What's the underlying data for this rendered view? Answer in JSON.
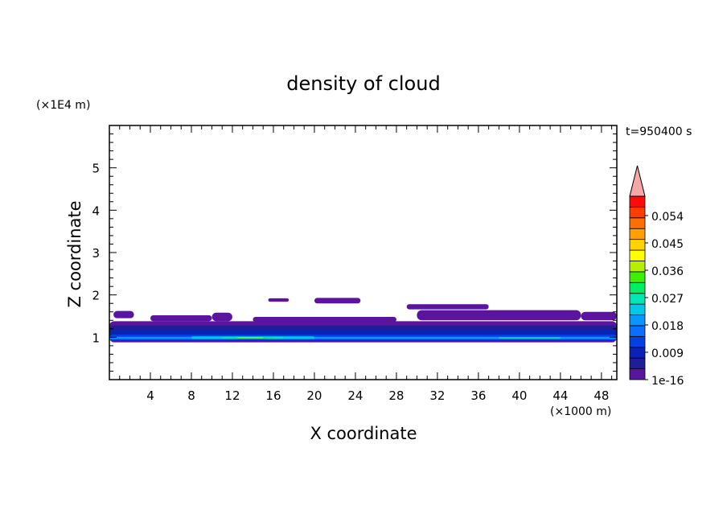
{
  "chart_data": {
    "type": "heatmap",
    "title": "density of cloud",
    "xlabel": "X coordinate",
    "ylabel": "Z coordinate",
    "x_unit": "(×1000 m)",
    "y_unit": "(×1E4 m)",
    "time_label": "t=950400 s",
    "xlim": [
      0,
      49.5
    ],
    "ylim": [
      0,
      6
    ],
    "x_ticks": [
      4,
      8,
      12,
      16,
      20,
      24,
      28,
      32,
      36,
      40,
      44,
      48
    ],
    "y_ticks": [
      1,
      2,
      3,
      4,
      5
    ],
    "grid": false,
    "colorbar": {
      "labels": [
        "1e-16",
        "0.009",
        "0.018",
        "0.027",
        "0.036",
        "0.045",
        "0.054"
      ],
      "colors": [
        "#5a14a0",
        "#1e1e96",
        "#0a23b4",
        "#0041e6",
        "#0a6eff",
        "#0a96ff",
        "#00c8e6",
        "#00e6b4",
        "#00ee64",
        "#3cf000",
        "#b4f000",
        "#ffff00",
        "#ffd200",
        "#ffa000",
        "#ff6e00",
        "#ff3c00",
        "#ff0a0a"
      ],
      "extend_color": "#f4a8a8",
      "extend": "max"
    },
    "regions": [
      {
        "level": 0,
        "x0": 0,
        "x1": 49.5,
        "z0": 0.88,
        "z1": 1.38
      },
      {
        "level": 0,
        "x0": 0.4,
        "x1": 2.4,
        "z0": 1.45,
        "z1": 1.62
      },
      {
        "level": 0,
        "x0": 4,
        "x1": 10,
        "z0": 1.38,
        "z1": 1.52
      },
      {
        "level": 0,
        "x0": 10,
        "x1": 12,
        "z0": 1.38,
        "z1": 1.58
      },
      {
        "level": 0,
        "x0": 14,
        "x1": 28,
        "z0": 1.36,
        "z1": 1.48
      },
      {
        "level": 0,
        "x0": 15.5,
        "x1": 17.5,
        "z0": 1.84,
        "z1": 1.92
      },
      {
        "level": 0,
        "x0": 20,
        "x1": 24.5,
        "z0": 1.8,
        "z1": 1.93
      },
      {
        "level": 0,
        "x0": 29,
        "x1": 37,
        "z0": 1.66,
        "z1": 1.78
      },
      {
        "level": 0,
        "x0": 30,
        "x1": 46,
        "z0": 1.4,
        "z1": 1.64
      },
      {
        "level": 0,
        "x0": 46,
        "x1": 49.5,
        "z0": 1.4,
        "z1": 1.6
      },
      {
        "level": 1,
        "x0": 0,
        "x1": 49.5,
        "z0": 0.92,
        "z1": 1.28
      },
      {
        "level": 2,
        "x0": 0,
        "x1": 49.5,
        "z0": 0.95,
        "z1": 1.18
      },
      {
        "level": 3,
        "x0": 0,
        "x1": 49.5,
        "z0": 0.93,
        "z1": 1.06
      },
      {
        "level": 5,
        "x0": 0,
        "x1": 49.5,
        "z0": 0.96,
        "z1": 1.01
      },
      {
        "level": 6,
        "x0": 8,
        "x1": 20,
        "z0": 0.96,
        "z1": 1.02
      },
      {
        "level": 7,
        "x0": 11,
        "x1": 17,
        "z0": 0.97,
        "z1": 1.01
      },
      {
        "level": 8,
        "x0": 12,
        "x1": 16,
        "z0": 0.975,
        "z1": 1.005
      },
      {
        "level": 10,
        "x0": 12.5,
        "x1": 15,
        "z0": 0.98,
        "z1": 1.0
      },
      {
        "level": 7,
        "x0": 38,
        "x1": 44,
        "z0": 0.97,
        "z1": 1.0
      }
    ]
  }
}
